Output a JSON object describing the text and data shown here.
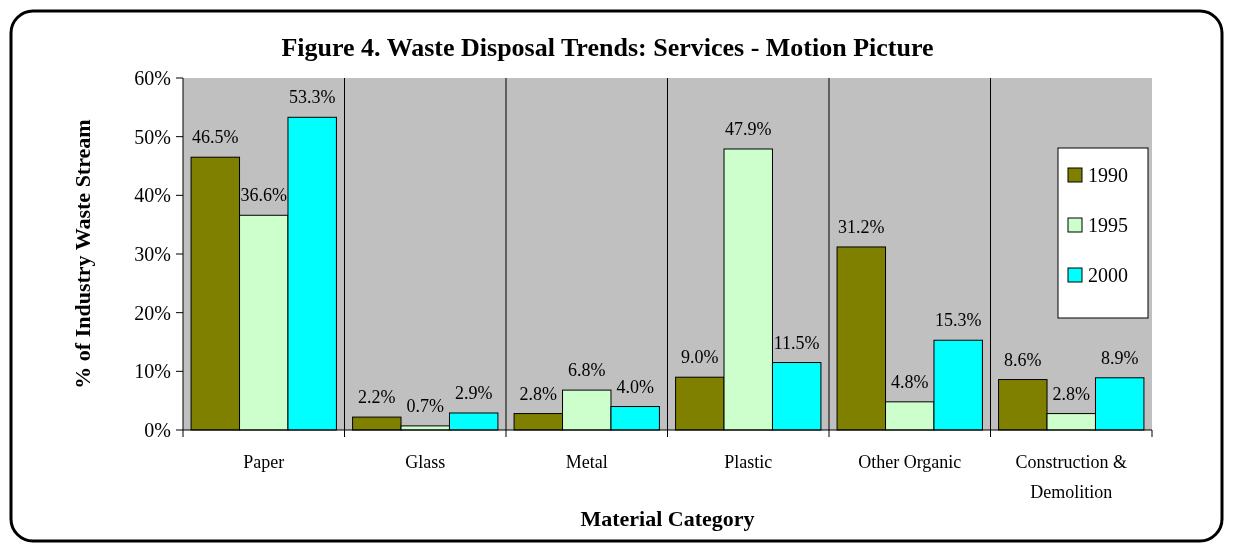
{
  "chart_data": {
    "type": "bar",
    "title": "Figure 4. Waste Disposal Trends: Services - Motion Picture",
    "xlabel": "Material Category",
    "ylabel": "% of Industry Waste Stream",
    "categories": [
      "Paper",
      "Glass",
      "Metal",
      "Plastic",
      "Other Organic",
      "Construction & Demolition"
    ],
    "series": [
      {
        "name": "1990",
        "color": "#808000",
        "values": [
          46.5,
          2.2,
          2.8,
          9.0,
          31.2,
          8.6
        ],
        "value_labels": [
          "46.5%",
          "2.2%",
          "2.8%",
          "9.0%",
          "31.2%",
          "8.6%"
        ]
      },
      {
        "name": "1995",
        "color": "#ccffcc",
        "values": [
          36.6,
          0.7,
          6.8,
          47.9,
          4.8,
          2.8
        ],
        "value_labels": [
          "36.6%",
          "0.7%",
          "6.8%",
          "47.9%",
          "4.8%",
          "2.8%"
        ]
      },
      {
        "name": "2000",
        "color": "#00ffff",
        "values": [
          53.3,
          2.9,
          4.0,
          11.5,
          15.3,
          8.9
        ],
        "value_labels": [
          "53.3%",
          "2.9%",
          "4.0%",
          "11.5%",
          "15.3%",
          "8.9%"
        ]
      }
    ],
    "ylim": [
      0,
      60
    ],
    "yticks": [
      {
        "value": 0,
        "label": "0%"
      },
      {
        "value": 10,
        "label": "10%"
      },
      {
        "value": 20,
        "label": "20%"
      },
      {
        "value": 30,
        "label": "30%"
      },
      {
        "value": 40,
        "label": "40%"
      },
      {
        "value": 50,
        "label": "50%"
      },
      {
        "value": 60,
        "label": "60%"
      }
    ],
    "grid": "x",
    "legend": "top right"
  }
}
